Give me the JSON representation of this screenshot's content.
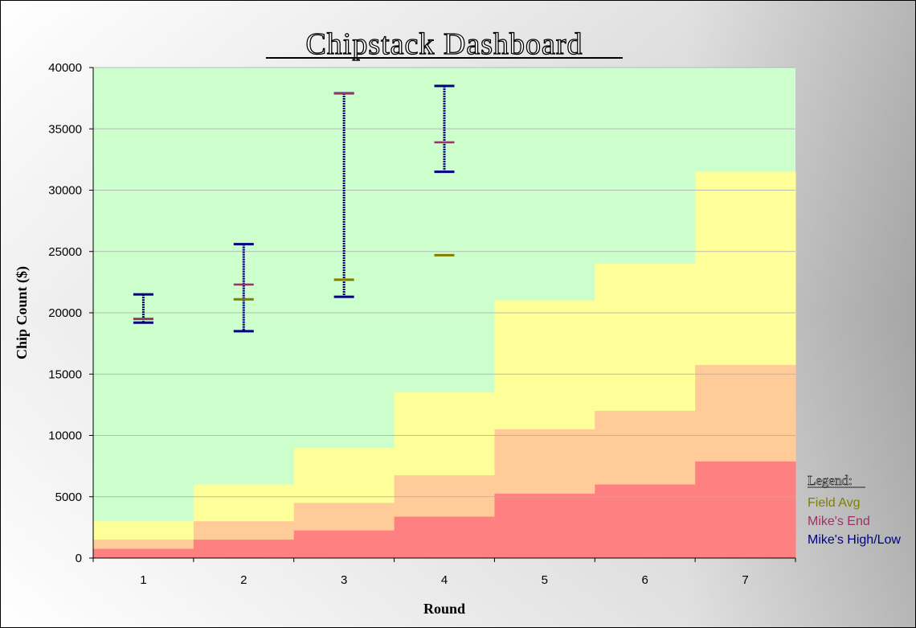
{
  "colors": {
    "plot_bg": "#CCFFCC",
    "band_top": "#FFFF99",
    "band_mid": "#FFCC99",
    "band_low": "#FF8080",
    "field_avg": "#808000",
    "mikes_end": "#993366",
    "mikes_high_low": "#000080",
    "gridline": "#B0B0B0"
  },
  "legend": {
    "heading": "Legend:",
    "items": [
      {
        "label": "Field Avg",
        "color": "#808000"
      },
      {
        "label": "Mike's End",
        "color": "#993366"
      },
      {
        "label": "Mike's High/Low",
        "color": "#000080"
      }
    ]
  },
  "chart_data": {
    "type": "area",
    "title": "Chipstack Dashboard",
    "xlabel": "Round",
    "ylabel": "Chip Count ($)",
    "ylim": [
      0,
      40000
    ],
    "yticks": [
      0,
      5000,
      10000,
      15000,
      20000,
      25000,
      30000,
      35000,
      40000
    ],
    "categories": [
      "1",
      "2",
      "3",
      "4",
      "5",
      "6",
      "7"
    ],
    "grid": true,
    "legend_position": "bottom-right",
    "bands": [
      {
        "values": [
          750,
          1500,
          2250,
          3375,
          5250,
          6000,
          7875
        ]
      },
      {
        "values": [
          1500,
          3000,
          4500,
          6750,
          10500,
          12000,
          15750
        ]
      },
      {
        "values": [
          3000,
          6000,
          9000,
          13500,
          21000,
          24000,
          31500
        ]
      }
    ],
    "series": [
      {
        "name": "Field Avg",
        "values": [
          19500,
          21100,
          22700,
          24700,
          null,
          null,
          null
        ]
      },
      {
        "name": "Mike's End",
        "values": [
          19500,
          22300,
          37900,
          33900,
          null,
          null,
          null
        ]
      },
      {
        "name": "Mike's High/Low",
        "high": [
          21500,
          25600,
          37900,
          38500,
          null,
          null,
          null
        ],
        "low": [
          19200,
          18500,
          21300,
          31500,
          null,
          null,
          null
        ]
      }
    ]
  }
}
